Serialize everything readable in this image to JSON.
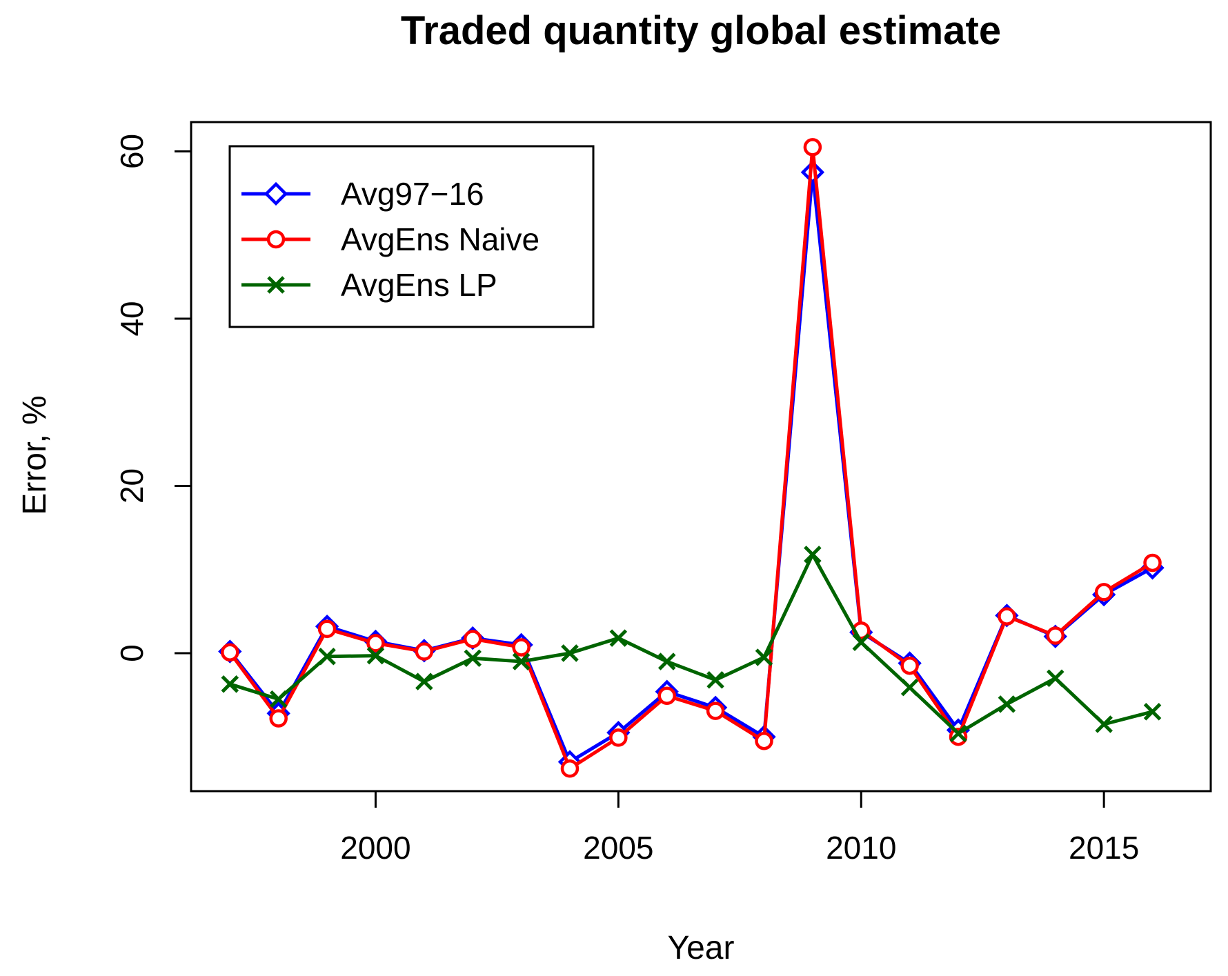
{
  "chart_data": {
    "type": "line",
    "title": "Traded quantity global estimate",
    "xlabel": "Year",
    "ylabel": "Error, %",
    "xlim": [
      1996.2,
      2017.2
    ],
    "ylim": [
      -16.5,
      63.5
    ],
    "x_ticks": [
      2000,
      2005,
      2010,
      2015
    ],
    "y_ticks": [
      0,
      20,
      40,
      60
    ],
    "legend_position": "top-left",
    "x": [
      1997,
      1998,
      1999,
      2000,
      2001,
      2002,
      2003,
      2004,
      2005,
      2006,
      2007,
      2008,
      2009,
      2010,
      2011,
      2012,
      2013,
      2014,
      2015,
      2016
    ],
    "series": [
      {
        "name": "Avg97−16",
        "color": "#0000ff",
        "marker": "diamond",
        "values": [
          0.2,
          -7.2,
          3.2,
          1.4,
          0.3,
          1.8,
          1.0,
          -13.0,
          -9.5,
          -4.6,
          -6.5,
          -10.0,
          57.5,
          2.5,
          -1.2,
          -9.2,
          4.5,
          2.0,
          7.0,
          10.2
        ]
      },
      {
        "name": "AvgEns Naive",
        "color": "#ff0000",
        "marker": "circle",
        "values": [
          0.1,
          -7.8,
          2.9,
          1.2,
          0.2,
          1.7,
          0.7,
          -13.8,
          -10.1,
          -5.1,
          -6.9,
          -10.5,
          60.5,
          2.7,
          -1.5,
          -10.0,
          4.4,
          2.1,
          7.3,
          10.8
        ]
      },
      {
        "name": "AvgEns LP",
        "color": "#006400",
        "marker": "x",
        "values": [
          -3.7,
          -5.5,
          -0.4,
          -0.3,
          -3.4,
          -0.6,
          -1.0,
          0.0,
          1.8,
          -1.0,
          -3.2,
          -0.5,
          11.8,
          1.3,
          -4.1,
          -9.6,
          -6.1,
          -3.0,
          -8.5,
          -7.0
        ]
      }
    ]
  }
}
